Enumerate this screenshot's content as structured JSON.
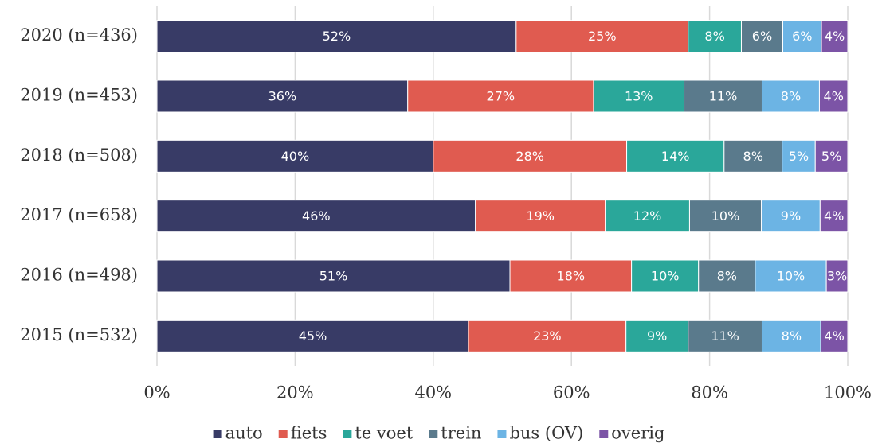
{
  "chart_data": {
    "type": "bar",
    "orientation": "horizontal",
    "stacked": true,
    "categories": [
      "2020 (n=436)",
      "2019 (n=453)",
      "2018 (n=508)",
      "2017 (n=658)",
      "2016 (n=498)",
      "2015 (n=532)"
    ],
    "series": [
      {
        "name": "auto",
        "color": "#383b66",
        "values": [
          52.0,
          36.3,
          40.0,
          46.1,
          51.1,
          45.1
        ],
        "value_labels": [
          "52%",
          "36%",
          "40%",
          "46%",
          "51%",
          "45%"
        ]
      },
      {
        "name": "fiets",
        "color": "#e05b50",
        "values": [
          24.9,
          26.9,
          28.0,
          18.8,
          17.6,
          22.8
        ],
        "value_labels": [
          "25%",
          "27%",
          "28%",
          "19%",
          "18%",
          "23%"
        ]
      },
      {
        "name": "te voet",
        "color": "#2aa79a",
        "values": [
          7.7,
          13.1,
          14.1,
          12.2,
          9.7,
          9.0
        ],
        "value_labels": [
          "8%",
          "13%",
          "14%",
          "12%",
          "10%",
          "9%"
        ]
      },
      {
        "name": "trein",
        "color": "#5a7a8c",
        "values": [
          6.0,
          11.3,
          8.4,
          10.4,
          8.2,
          10.7
        ],
        "value_labels": [
          "6%",
          "11%",
          "8%",
          "10%",
          "8%",
          "11%"
        ]
      },
      {
        "name": "bus (OV)",
        "color": "#6cb4e4",
        "values": [
          5.6,
          8.3,
          4.8,
          8.5,
          10.3,
          8.5
        ],
        "value_labels": [
          "6%",
          "8%",
          "5%",
          "9%",
          "10%",
          "8%"
        ]
      },
      {
        "name": "overig",
        "color": "#7c54a6",
        "values": [
          3.8,
          4.1,
          4.7,
          4.0,
          3.1,
          3.9
        ],
        "value_labels": [
          "4%",
          "4%",
          "5%",
          "4%",
          "3%",
          "4%"
        ]
      }
    ],
    "xlim": [
      0,
      100
    ],
    "xticks": [
      {
        "value": 0,
        "label": "0%"
      },
      {
        "value": 20,
        "label": "20%"
      },
      {
        "value": 40,
        "label": "40%"
      },
      {
        "value": 60,
        "label": "60%"
      },
      {
        "value": 80,
        "label": "80%"
      },
      {
        "value": 100,
        "label": "100%"
      }
    ],
    "grid": true,
    "legend": "bottom"
  }
}
